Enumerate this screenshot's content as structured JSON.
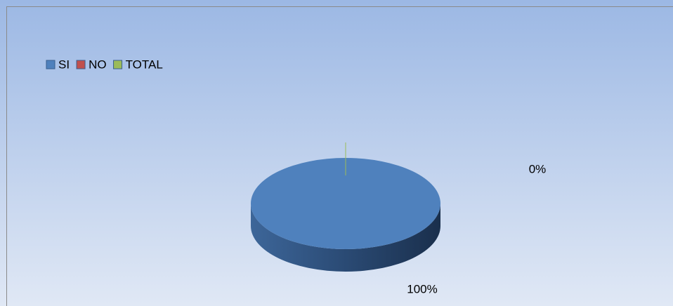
{
  "chart_data": {
    "type": "pie",
    "categories": [
      "SI",
      "NO",
      "TOTAL"
    ],
    "values": [
      100,
      0,
      0
    ],
    "value_labels": [
      "100%",
      "0%",
      null
    ],
    "colors": [
      "#4f81bd",
      "#c0504d",
      "#9bbb59"
    ],
    "legend": "top-left"
  }
}
